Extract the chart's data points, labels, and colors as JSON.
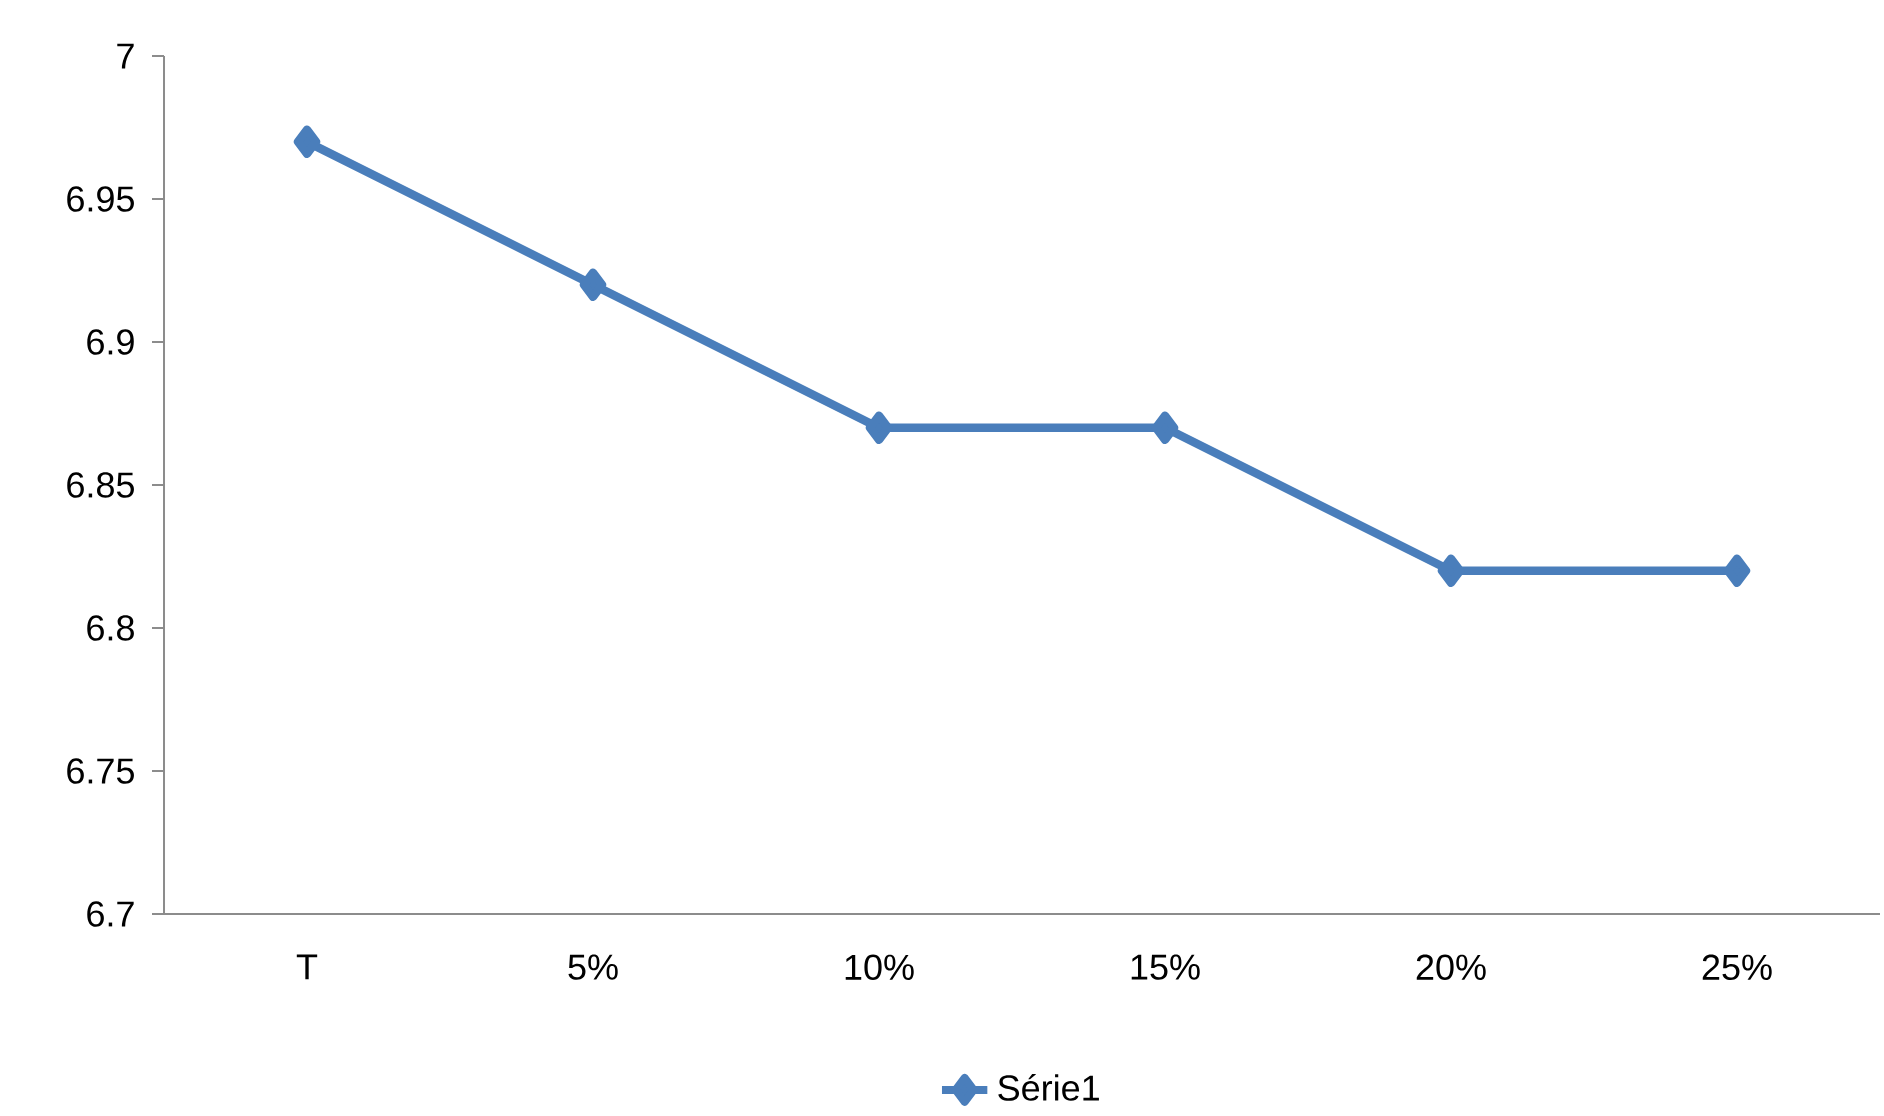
{
  "chart_data": {
    "type": "line",
    "categories": [
      "T",
      "5%",
      "10%",
      "15%",
      "20%",
      "25%"
    ],
    "series": [
      {
        "name": "Série1",
        "color": "#4a7ebb",
        "values": [
          6.97,
          6.92,
          6.87,
          6.87,
          6.82,
          6.82
        ]
      }
    ],
    "ylim": [
      6.7,
      7
    ],
    "yticks": [
      6.7,
      6.75,
      6.8,
      6.85,
      6.9,
      6.95,
      7
    ],
    "marker": "diamond",
    "legend": "bottom"
  }
}
